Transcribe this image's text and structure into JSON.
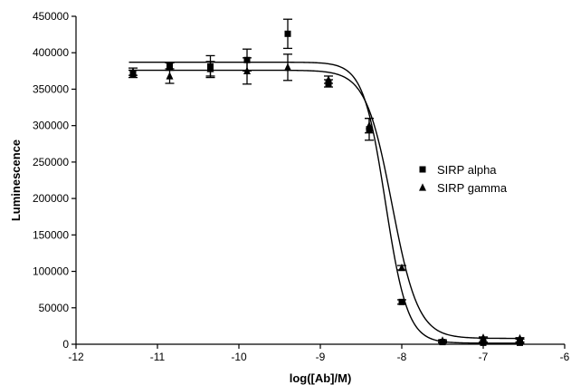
{
  "chart_data": {
    "type": "scatter",
    "xlabel": "log([Ab]/M)",
    "ylabel": "Luminescence",
    "xlim": [
      -12,
      -6
    ],
    "ylim": [
      0,
      450000
    ],
    "xticks": [
      -12,
      -11,
      -10,
      -9,
      -8,
      -7,
      -6
    ],
    "yticks": [
      0,
      50000,
      100000,
      150000,
      200000,
      250000,
      300000,
      350000,
      400000,
      450000
    ],
    "legend_position": "right",
    "series": [
      {
        "name": "SIRP alpha",
        "marker": "square",
        "points": [
          {
            "x": -11.3,
            "y": 371000,
            "err": 5000
          },
          {
            "x": -10.85,
            "y": 381000,
            "err": 5000
          },
          {
            "x": -10.35,
            "y": 381000,
            "err": 15000
          },
          {
            "x": -9.9,
            "y": 390000,
            "err": 15000
          },
          {
            "x": -9.4,
            "y": 426000,
            "err": 20000
          },
          {
            "x": -8.9,
            "y": 358000,
            "err": 5000
          },
          {
            "x": -8.4,
            "y": 295000,
            "err": 15000
          },
          {
            "x": -8.0,
            "y": 58000,
            "err": 3000
          },
          {
            "x": -7.5,
            "y": 3000,
            "err": 1000
          },
          {
            "x": -7.0,
            "y": 2000,
            "err": 1000
          },
          {
            "x": -6.55,
            "y": 2000,
            "err": 1000
          }
        ],
        "fit": {
          "top": 387000,
          "bottom": 1500,
          "logEC50": -8.2,
          "hill": -3.2
        }
      },
      {
        "name": "SIRP gamma",
        "marker": "triangle",
        "points": [
          {
            "x": -11.3,
            "y": 374000,
            "err": 5000
          },
          {
            "x": -10.85,
            "y": 368000,
            "err": 10000
          },
          {
            "x": -10.35,
            "y": 378000,
            "err": 10000
          },
          {
            "x": -9.9,
            "y": 375000,
            "err": 18000
          },
          {
            "x": -9.4,
            "y": 380000,
            "err": 18000
          },
          {
            "x": -8.9,
            "y": 363000,
            "err": 5000
          },
          {
            "x": -8.4,
            "y": 300000,
            "err": 10000
          },
          {
            "x": -8.0,
            "y": 105000,
            "err": 3000
          },
          {
            "x": -7.5,
            "y": 5000,
            "err": 1000
          },
          {
            "x": -7.0,
            "y": 9000,
            "err": 1000
          },
          {
            "x": -6.55,
            "y": 8000,
            "err": 1000
          }
        ],
        "fit": {
          "top": 376000,
          "bottom": 8000,
          "logEC50": -8.12,
          "hill": -2.7
        }
      }
    ]
  },
  "colors": {
    "ink": "#000000",
    "background": "#ffffff"
  }
}
